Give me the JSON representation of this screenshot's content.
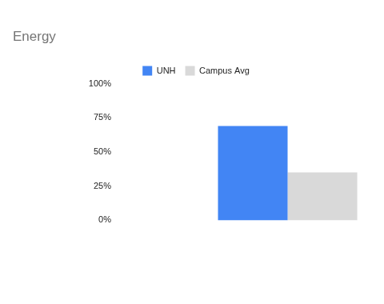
{
  "chart_data": {
    "type": "bar",
    "title": "Energy",
    "categories": [
      null
    ],
    "series": [
      {
        "name": "UNH",
        "color": "#4285f4",
        "values": [
          69
        ]
      },
      {
        "name": "Campus Avg",
        "color": "#d9d9d9",
        "values": [
          35
        ]
      }
    ],
    "ylim": [
      0,
      100
    ],
    "yticks": [
      {
        "value": 0,
        "label": "0%"
      },
      {
        "value": 25,
        "label": "25%"
      },
      {
        "value": 50,
        "label": "50%"
      },
      {
        "value": 75,
        "label": "75%"
      },
      {
        "value": 100,
        "label": "100%"
      }
    ],
    "grid": false,
    "legend": "top"
  }
}
